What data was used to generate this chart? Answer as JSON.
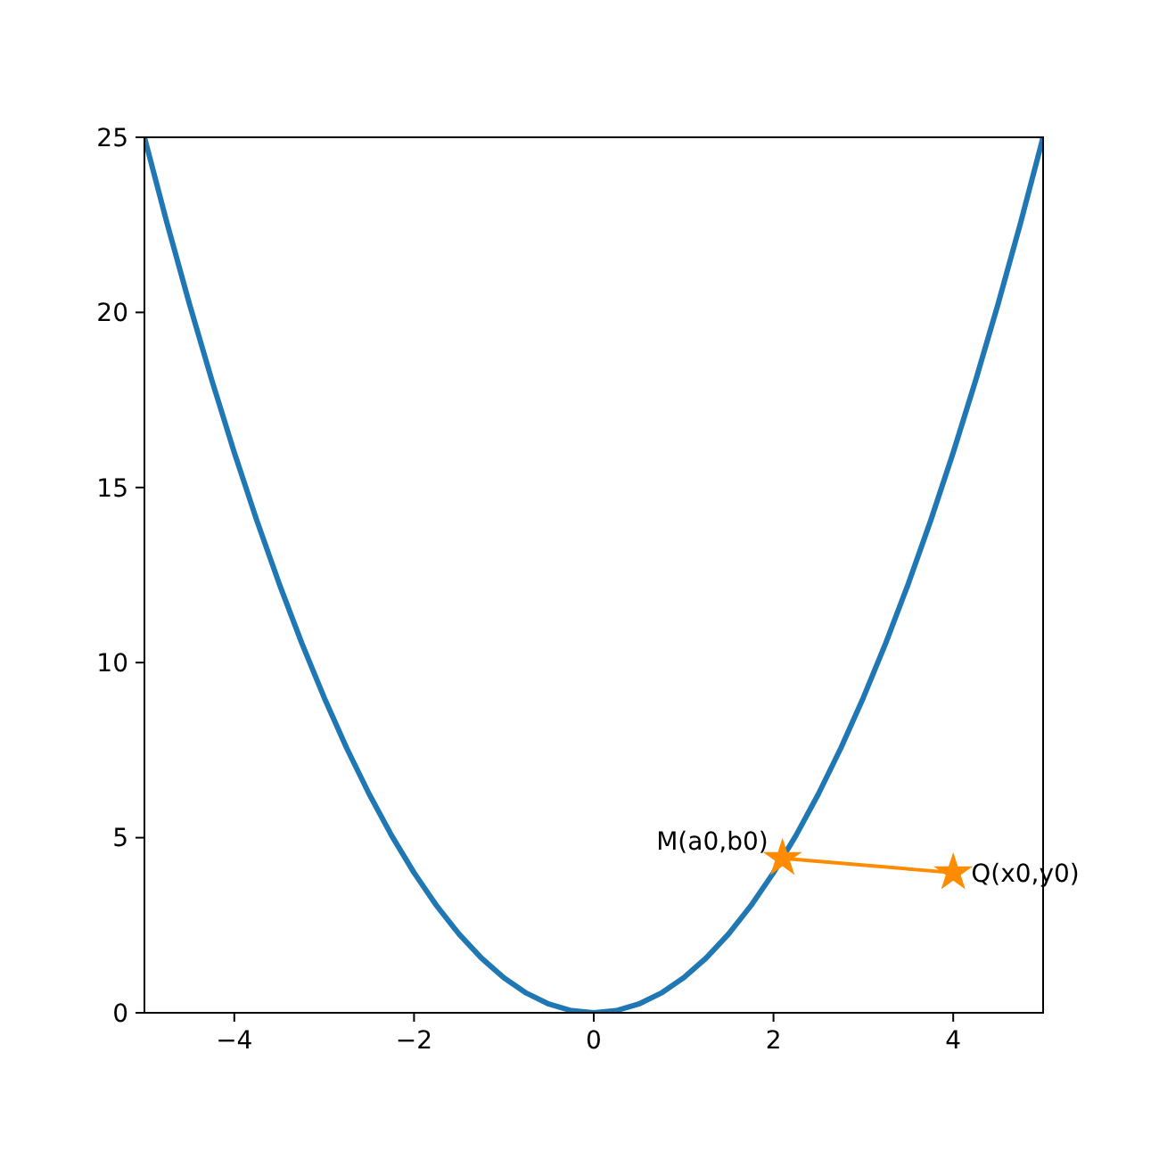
{
  "chart_data": {
    "type": "line",
    "xlim": [
      -5,
      5
    ],
    "ylim": [
      0,
      25
    ],
    "xticks": [
      {
        "value": -4,
        "label": "−4"
      },
      {
        "value": -2,
        "label": "−2"
      },
      0,
      2,
      4
    ],
    "yticks": [
      0,
      5,
      10,
      15,
      20,
      25
    ],
    "series": [
      {
        "color": "#1f77b4",
        "marker": "none",
        "x": [
          -5,
          -4.75,
          -4.5,
          -4.25,
          -4,
          -3.75,
          -3.5,
          -3.25,
          -3,
          -2.75,
          -2.5,
          -2.25,
          -2,
          -1.75,
          -1.5,
          -1.25,
          -1,
          -0.75,
          -0.5,
          -0.25,
          0,
          0.25,
          0.5,
          0.75,
          1,
          1.25,
          1.5,
          1.75,
          2,
          2.25,
          2.5,
          2.75,
          3,
          3.25,
          3.5,
          3.75,
          4,
          4.25,
          4.5,
          4.75,
          5
        ],
        "values": [
          25,
          22.5625,
          20.25,
          18.0625,
          16,
          14.0625,
          12.25,
          10.5625,
          9,
          7.5625,
          6.25,
          5.0625,
          4,
          3.0625,
          2.25,
          1.5625,
          1,
          0.5625,
          0.25,
          0.0625,
          0,
          0.0625,
          0.25,
          0.5625,
          1,
          1.5625,
          2.25,
          3.0625,
          4,
          5.0625,
          6.25,
          7.5625,
          9,
          10.5625,
          12.25,
          14.0625,
          16,
          18.0625,
          20.25,
          22.5625,
          25
        ]
      },
      {
        "color": "#ff8c00",
        "marker": "star",
        "x": [
          2.1,
          4
        ],
        "values": [
          4.41,
          4
        ]
      }
    ],
    "annotations": [
      {
        "text": "M(a0,b0)",
        "x": 2.1,
        "y": 4.41
      },
      {
        "text": "Q(x0,y0)",
        "x": 4,
        "y": 4
      }
    ]
  }
}
